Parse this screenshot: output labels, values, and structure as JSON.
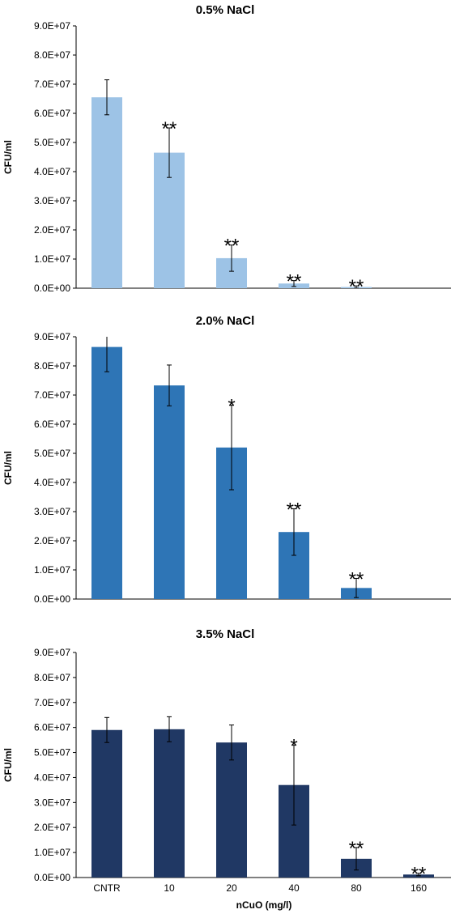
{
  "chart_data": [
    {
      "type": "bar",
      "title": "0.5% NaCl",
      "ylabel": "CFU/ml",
      "xlabel": "",
      "ylim": [
        0,
        90000000
      ],
      "yticks": [
        "0.0E+00",
        "1.0E+07",
        "2.0E+07",
        "3.0E+07",
        "4.0E+07",
        "5.0E+07",
        "6.0E+07",
        "7.0E+07",
        "8.0E+07",
        "9.0E+07"
      ],
      "categories": [
        "CNTR",
        "10",
        "20",
        "40",
        "80",
        "160"
      ],
      "show_category_labels": false,
      "color": "#9dc3e6",
      "values": [
        65500000,
        46500000,
        10300000,
        1600000,
        400000,
        0
      ],
      "error": [
        6000000,
        8500000,
        4500000,
        1000000,
        400000,
        0
      ],
      "annotations": [
        "",
        "**",
        "**",
        "**",
        "**",
        ""
      ],
      "grid": false
    },
    {
      "type": "bar",
      "title": "2.0% NaCl",
      "ylabel": "CFU/ml",
      "xlabel": "",
      "ylim": [
        0,
        90000000
      ],
      "yticks": [
        "0.0E+00",
        "1.0E+07",
        "2.0E+07",
        "3.0E+07",
        "4.0E+07",
        "5.0E+07",
        "6.0E+07",
        "7.0E+07",
        "8.0E+07",
        "9.0E+07"
      ],
      "categories": [
        "CNTR",
        "10",
        "20",
        "40",
        "80",
        "160"
      ],
      "show_category_labels": false,
      "color": "#2e75b6",
      "values": [
        86500000,
        73300000,
        52000000,
        23000000,
        3800000,
        0
      ],
      "error": [
        8500000,
        7000000,
        14500000,
        8000000,
        3300000,
        0
      ],
      "annotations": [
        "",
        "",
        "*",
        "**",
        "**",
        ""
      ],
      "grid": false
    },
    {
      "type": "bar",
      "title": "3.5% NaCl",
      "ylabel": "CFU/ml",
      "xlabel": "nCuO (mg/l)",
      "ylim": [
        0,
        90000000
      ],
      "yticks": [
        "0.0E+00",
        "1.0E+07",
        "2.0E+07",
        "3.0E+07",
        "4.0E+07",
        "5.0E+07",
        "6.0E+07",
        "7.0E+07",
        "8.0E+07",
        "9.0E+07"
      ],
      "categories": [
        "CNTR",
        "10",
        "20",
        "40",
        "80",
        "160"
      ],
      "show_category_labels": true,
      "color": "#203864",
      "values": [
        59000000,
        59300000,
        54000000,
        37000000,
        7500000,
        1200000
      ],
      "error": [
        5000000,
        5000000,
        7000000,
        16000000,
        4500000,
        500000
      ],
      "annotations": [
        "",
        "",
        "",
        "*",
        "**",
        "**"
      ],
      "grid": false
    }
  ]
}
